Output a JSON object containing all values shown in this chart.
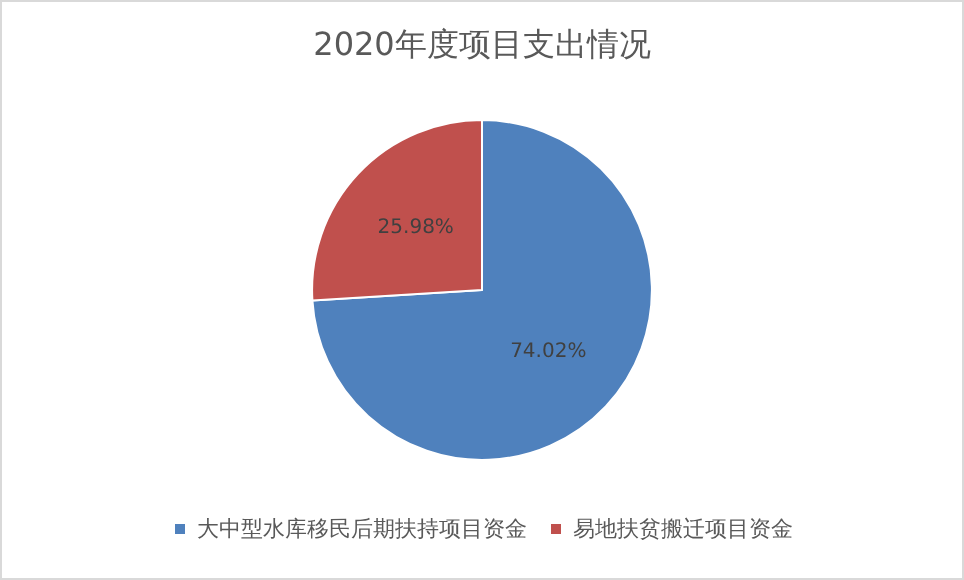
{
  "chart_data": {
    "type": "pie",
    "title": "2020年度项目支出情况",
    "categories": [
      "大中型水库移民后期扶持项目资金",
      "易地扶贫搬迁项目资金"
    ],
    "values": [
      74.02,
      25.98
    ],
    "colors": [
      "#4f81bd",
      "#c0504d"
    ],
    "value_labels": [
      "74.02%",
      "25.98%"
    ],
    "legend": "bottom"
  }
}
